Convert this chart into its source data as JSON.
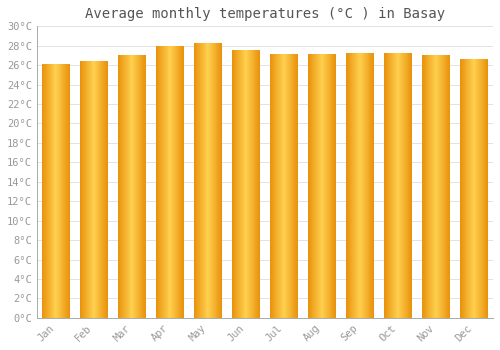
{
  "title": "Average monthly temperatures (°C ) in Basay",
  "months": [
    "Jan",
    "Feb",
    "Mar",
    "Apr",
    "May",
    "Jun",
    "Jul",
    "Aug",
    "Sep",
    "Oct",
    "Nov",
    "Dec"
  ],
  "values": [
    26.1,
    26.4,
    27.0,
    28.0,
    28.3,
    27.6,
    27.1,
    27.1,
    27.2,
    27.3,
    27.0,
    26.6
  ],
  "bar_color_center": "#FFD050",
  "bar_color_edge": "#E8900A",
  "background_color": "#FFFFFF",
  "plot_bg_color": "#FFFFFF",
  "grid_color": "#DDDDDD",
  "ylim": [
    0,
    30
  ],
  "ytick_step": 2,
  "title_fontsize": 10,
  "tick_fontsize": 7.5,
  "tick_color": "#999999",
  "title_color": "#555555"
}
